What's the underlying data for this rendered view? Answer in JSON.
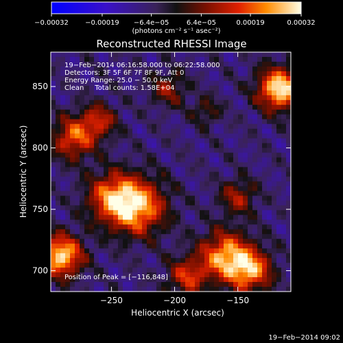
{
  "chart_data": {
    "type": "heatmap",
    "title": "Reconstructed RHESSI Image",
    "xlabel": "Heliocentric X (arcsec)",
    "ylabel": "Heliocentric Y (arcsec)",
    "xlim": [
      -298,
      -108
    ],
    "ylim": [
      683,
      878
    ],
    "x_ticks": [
      {
        "value": -250,
        "label": "−250"
      },
      {
        "value": -200,
        "label": "−200"
      },
      {
        "value": -150,
        "label": "−150"
      }
    ],
    "y_ticks": [
      {
        "value": 700,
        "label": "700"
      },
      {
        "value": 750,
        "label": "750"
      },
      {
        "value": 800,
        "label": "800"
      },
      {
        "value": 850,
        "label": "850"
      }
    ],
    "colorbar": {
      "min": -0.00032,
      "max": 0.00032,
      "ticks": [
        {
          "value": -0.00032,
          "label": "−0.00032"
        },
        {
          "value": -0.00019,
          "label": "−0.00019"
        },
        {
          "value": -6.4e-05,
          "label": "−6.4e−05"
        },
        {
          "value": 6.4e-05,
          "label": "6.4e−05"
        },
        {
          "value": 0.00019,
          "label": "0.00019"
        },
        {
          "value": 0.00032,
          "label": "0.00032"
        }
      ],
      "unit_label": "(photons cm⁻² s⁻¹ asec⁻²)"
    },
    "info_lines": [
      "19−Feb−2014 06:16:58.000 to 06:22:58.000",
      "Detectors: 3F 5F 6F 7F 8F 9F, Att 0",
      "Energy Range: 25.0 − 50.0 keV",
      "Clean     Total counts: 1.58E+04"
    ],
    "peak_label": "Position of Peak = [−116,848]",
    "sources": [
      {
        "x": -117,
        "y": 848,
        "amp": 1.0,
        "sigma": 12
      },
      {
        "x": -290,
        "y": 712,
        "amp": 0.95,
        "sigma": 12
      },
      {
        "x": -230,
        "y": 752,
        "amp": 0.85,
        "sigma": 16
      },
      {
        "x": -250,
        "y": 760,
        "amp": 0.6,
        "sigma": 14
      },
      {
        "x": -160,
        "y": 712,
        "amp": 0.8,
        "sigma": 14
      },
      {
        "x": -140,
        "y": 700,
        "amp": 0.75,
        "sigma": 12
      },
      {
        "x": -190,
        "y": 695,
        "amp": 0.55,
        "sigma": 11
      },
      {
        "x": -280,
        "y": 808,
        "amp": 0.65,
        "sigma": 12
      },
      {
        "x": -260,
        "y": 822,
        "amp": 0.5,
        "sigma": 10
      },
      {
        "x": -205,
        "y": 848,
        "amp": 0.4,
        "sigma": 10
      },
      {
        "x": -150,
        "y": 760,
        "amp": 0.45,
        "sigma": 10
      },
      {
        "x": -175,
        "y": 830,
        "amp": 0.3,
        "sigma": 8
      }
    ],
    "grid": false
  },
  "footer": {
    "timestamp": "19−Feb−2014 09:02"
  }
}
